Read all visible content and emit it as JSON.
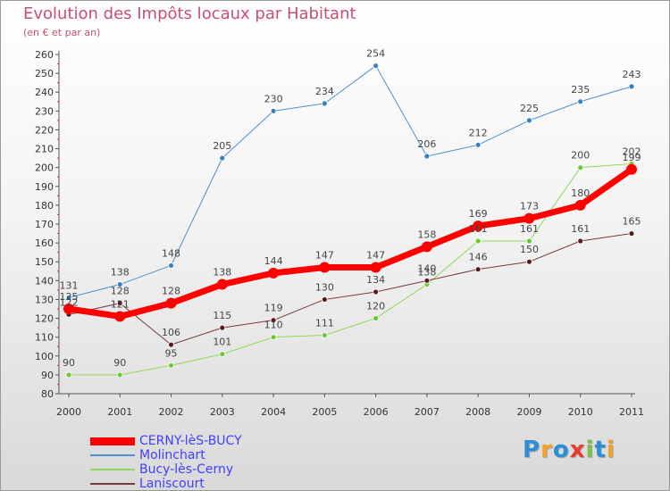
{
  "title": "Evolution des Impôts locaux par Habitant",
  "subtitle": "(en € et par an)",
  "logo": {
    "text": "Proxiti",
    "letters": [
      "P",
      "r",
      "o",
      "x",
      "i",
      "t",
      "i"
    ],
    "colors": [
      "#2a8fd6",
      "#f2a12a",
      "#2a8fd6",
      "#e83c2c",
      "#7cc04a",
      "#2a8fd6",
      "#f2a12a"
    ]
  },
  "chart_data": {
    "type": "line",
    "title": "Evolution des Impôts locaux par Habitant",
    "subtitle": "(en € et par an)",
    "xlabel": "",
    "ylabel": "",
    "ylim": [
      80,
      260
    ],
    "ytick_step": 10,
    "grid": false,
    "legend_position": "bottom-left",
    "x": [
      "2000",
      "2001",
      "2002",
      "2003",
      "2004",
      "2005",
      "2006",
      "2007",
      "2008",
      "2009",
      "2010",
      "2011"
    ],
    "series": [
      {
        "name": "Molinchart",
        "color": "#4f8fcf",
        "marker": "#3a7fc0",
        "width": 1,
        "values": [
          131,
          138,
          148,
          205,
          230,
          234,
          254,
          206,
          212,
          225,
          235,
          243
        ]
      },
      {
        "name": "Bucy-lès-Cerny",
        "color": "#8fd85a",
        "marker": "#6cc832",
        "width": 1,
        "values": [
          90,
          90,
          95,
          101,
          110,
          111,
          120,
          138,
          161,
          161,
          200,
          202
        ]
      },
      {
        "name": "Laniscourt",
        "color": "#7a3a3a",
        "marker": "#5a1a1a",
        "width": 1,
        "values": [
          122,
          128,
          106,
          115,
          119,
          130,
          134,
          140,
          146,
          150,
          161,
          165
        ]
      },
      {
        "name": "CERNY-lèS-BUCY",
        "color": "#ff0000",
        "marker": "#ff0000",
        "width": 7,
        "values": [
          125,
          121,
          128,
          138,
          144,
          147,
          147,
          158,
          169,
          173,
          180,
          199
        ]
      }
    ],
    "legend_order": [
      "CERNY-lèS-BUCY",
      "Molinchart",
      "Bucy-lès-Cerny",
      "Laniscourt"
    ],
    "labels": [
      {
        "text": "131"
      },
      {
        "text": "138"
      },
      {
        "text": "148"
      },
      {
        "text": "205"
      },
      {
        "text": "230"
      },
      {
        "text": "234"
      },
      {
        "text": "254"
      },
      {
        "text": "206"
      },
      {
        "text": "212"
      },
      {
        "text": "225"
      },
      {
        "text": "235"
      },
      {
        "text": "243"
      },
      {
        "text": "90"
      },
      {
        "text": "90"
      },
      {
        "text": "95"
      },
      {
        "text": "101"
      },
      {
        "text": "110"
      },
      {
        "text": "111"
      },
      {
        "text": "120"
      },
      {
        "text": "138"
      },
      {
        "text": "161"
      },
      {
        "text": "161"
      },
      {
        "text": "200"
      },
      {
        "text": "202"
      },
      {
        "text": "122"
      },
      {
        "text": "128"
      },
      {
        "text": "106"
      },
      {
        "text": "115"
      },
      {
        "text": "119"
      },
      {
        "text": "130"
      },
      {
        "text": "134"
      },
      {
        "text": "140"
      },
      {
        "text": "146"
      },
      {
        "text": "150"
      },
      {
        "text": "161"
      },
      {
        "text": "165"
      },
      {
        "text": "125"
      },
      {
        "text": "121"
      },
      {
        "text": "128"
      },
      {
        "text": "138"
      },
      {
        "text": "144"
      },
      {
        "text": "147"
      },
      {
        "text": "147"
      },
      {
        "text": "158"
      },
      {
        "text": "169"
      },
      {
        "text": "173"
      },
      {
        "text": "180"
      },
      {
        "text": "199"
      }
    ]
  }
}
